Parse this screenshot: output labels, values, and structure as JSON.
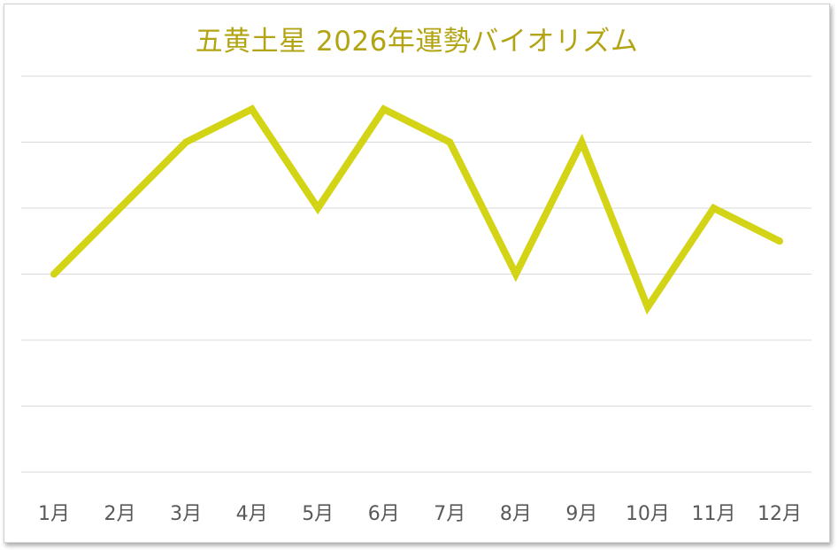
{
  "chart_data": {
    "type": "line",
    "title": "五黄土星 2026年運勢バイオリズム",
    "categories": [
      "1月",
      "2月",
      "3月",
      "4月",
      "5月",
      "6月",
      "7月",
      "8月",
      "9月",
      "10月",
      "11月",
      "12月"
    ],
    "series": [
      {
        "values": [
          5,
          6,
          7,
          7.5,
          6,
          7.5,
          7,
          5,
          7,
          4.5,
          6,
          5.5
        ],
        "color": "#d4d416"
      }
    ],
    "ylim": [
      2,
      8
    ],
    "y_ticks_shown": false,
    "grid": true,
    "legend": "none",
    "xlabel": "",
    "ylabel": ""
  },
  "colors": {
    "title": "#b3a414",
    "line": "#d4d416",
    "grid": "#d9d9d9",
    "tick_label": "#595959"
  }
}
